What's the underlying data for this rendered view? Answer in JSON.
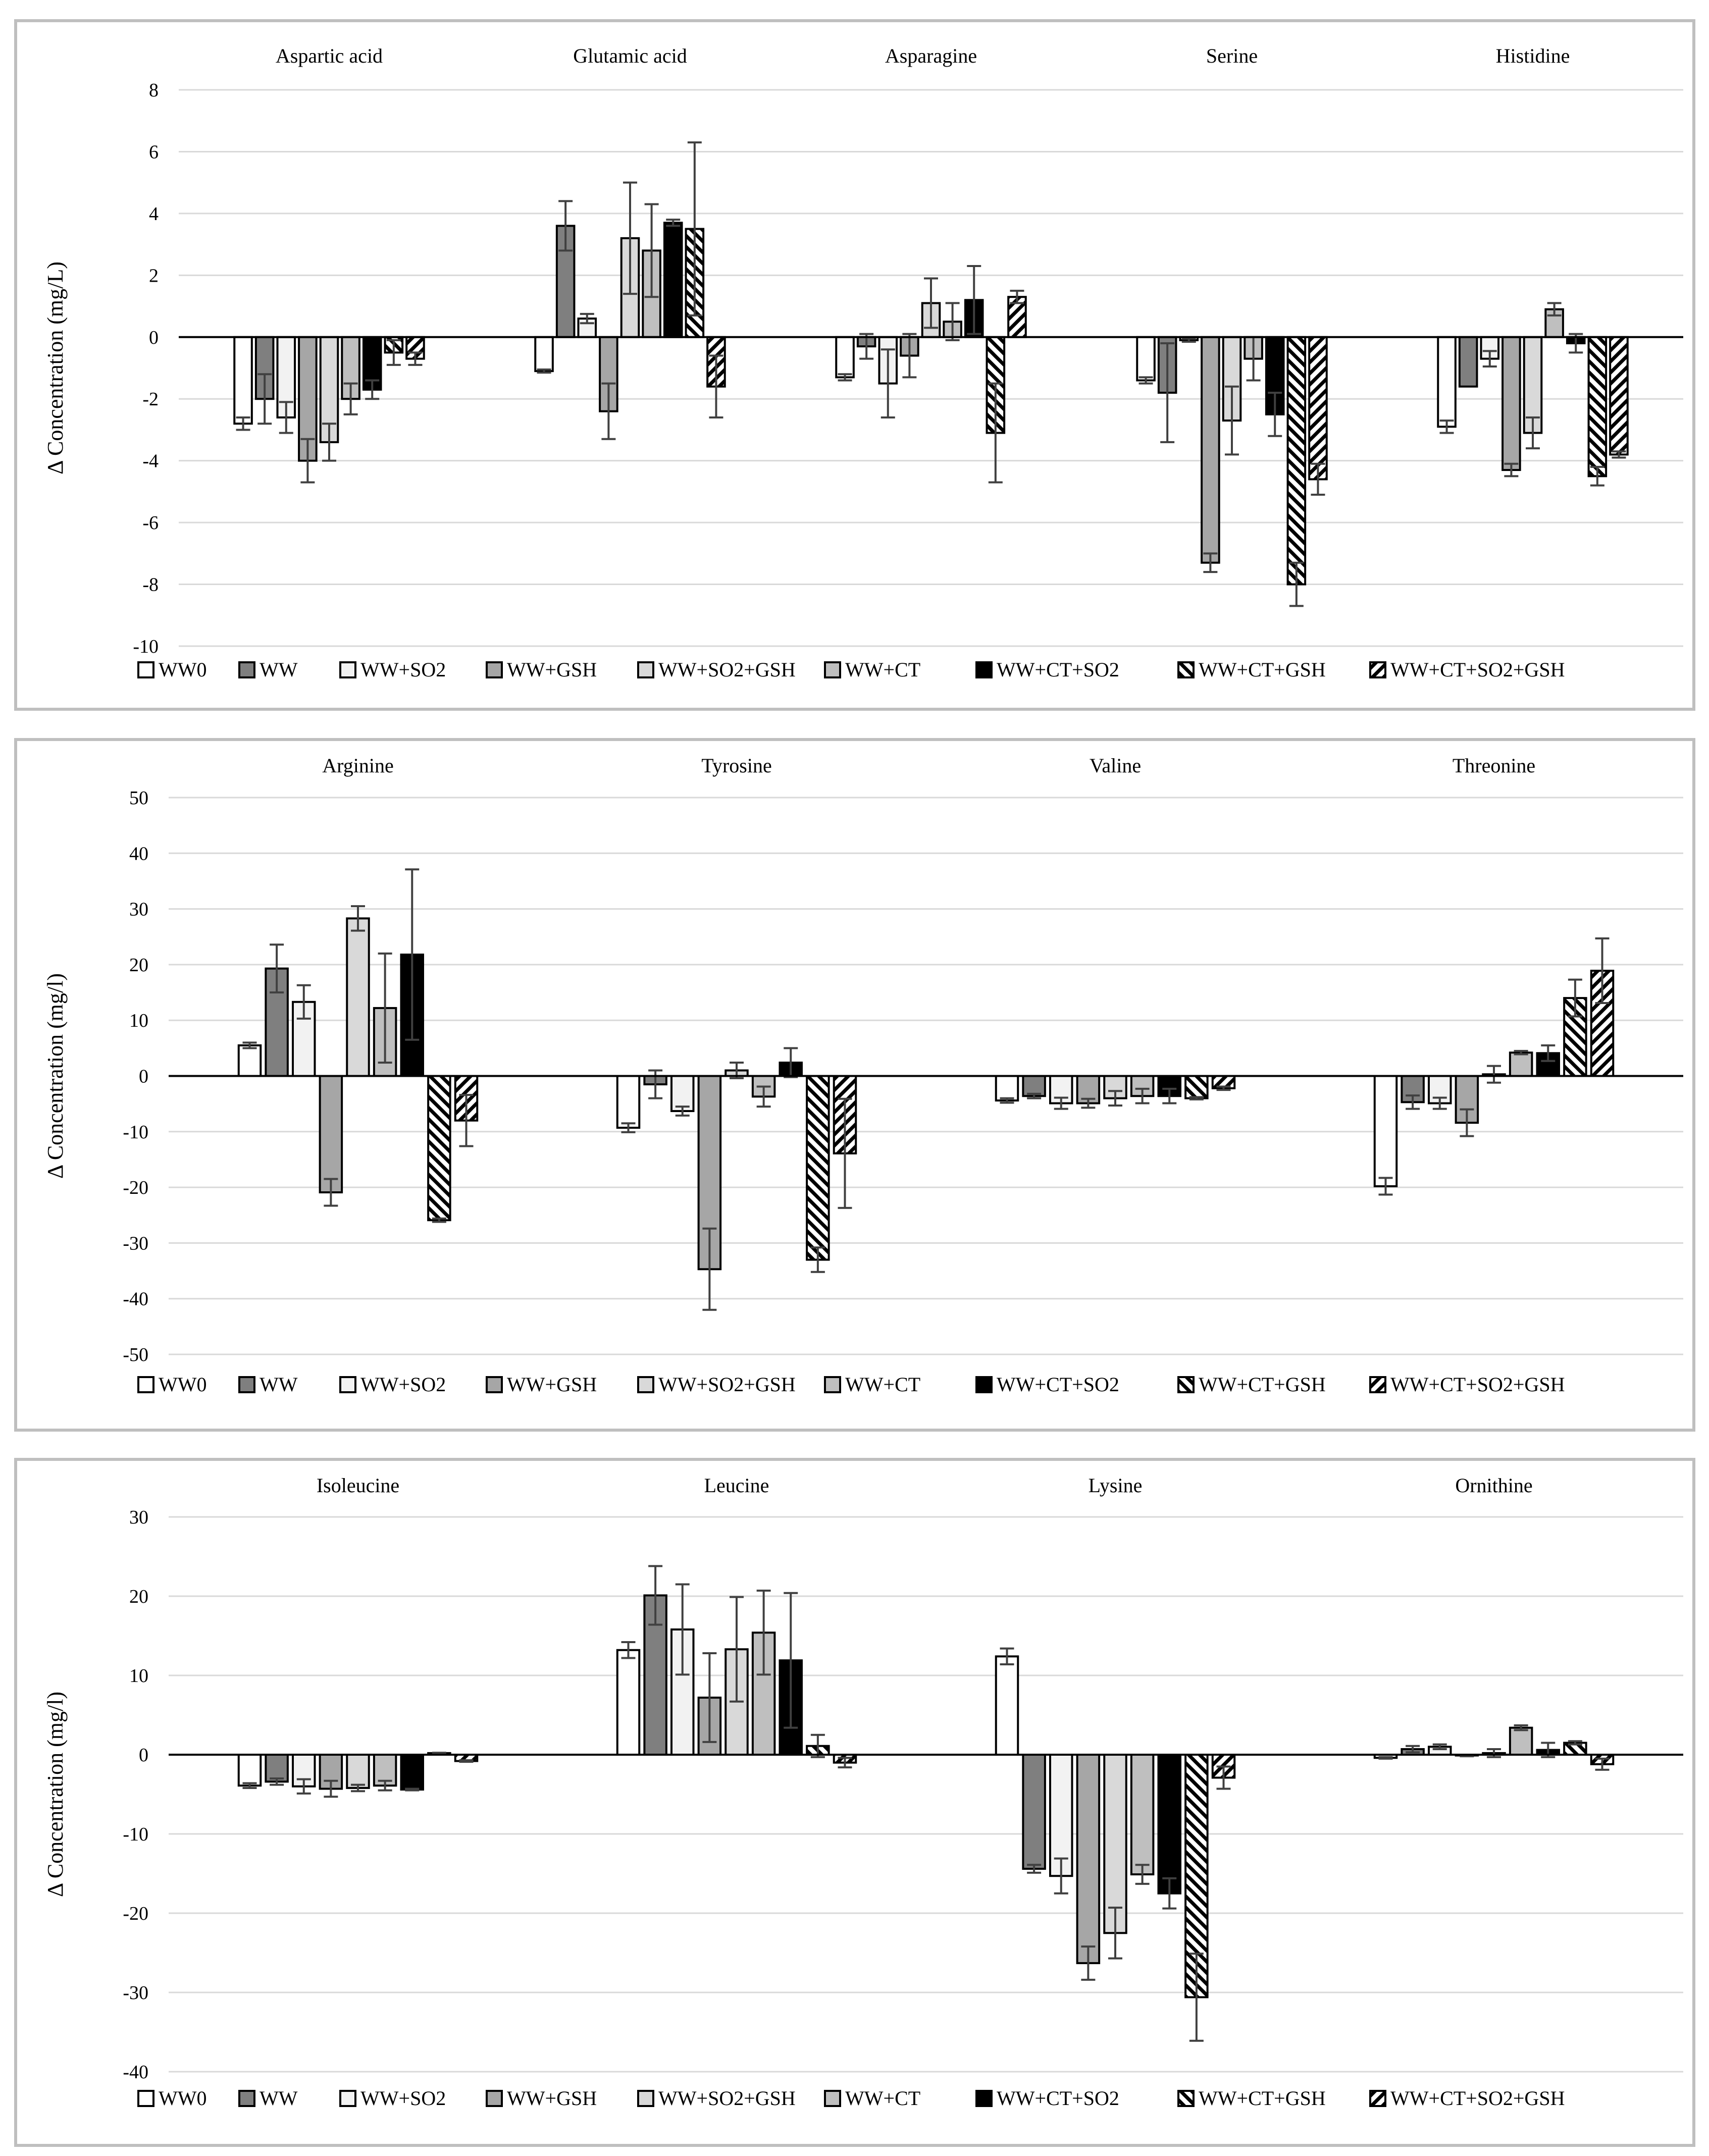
{
  "legend": [
    "WW0",
    "WW",
    "WW+SO2",
    "WW+GSH",
    "WW+SO2+GSH",
    "WW+CT",
    "WW+CT+SO2",
    "WW+CT+GSH",
    "WW+CT+SO2+GSH"
  ],
  "colors": {
    "grid": "#d9d9d9",
    "axis": "#000000",
    "text": "#000000",
    "border": "#bfbfbf",
    "WW0": "#ffffff",
    "WW": "#7f7f7f",
    "WW+SO2": "#f2f2f2",
    "WW+GSH": "#a6a6a6",
    "WW+SO2+GSH": "#d9d9d9",
    "WW+CT": "#bfbfbf",
    "WW+CT+SO2": "#000000",
    "WW+CT+GSH": "hatch-back",
    "WW+CT+SO2+GSH": "hatch-forward"
  },
  "chart_data": [
    {
      "type": "bar",
      "title": "",
      "ylabel": "Δ Concentration (mg/L)",
      "ylim": [
        -10,
        8
      ],
      "yticks": [
        8,
        6,
        4,
        2,
        0,
        -2,
        -4,
        -6,
        -8,
        -10
      ],
      "categories": [
        "Aspartic acid",
        "Glutamic acid",
        "Asparagine",
        "Serine",
        "Histidine"
      ],
      "series": [
        {
          "name": "WW0",
          "values": [
            -2.8,
            -1.1,
            -1.3,
            -1.4,
            -2.9
          ],
          "errors": [
            0.2,
            0.05,
            0.1,
            0.1,
            0.2
          ]
        },
        {
          "name": "WW",
          "values": [
            -2.0,
            3.6,
            -0.3,
            -1.8,
            -1.6
          ],
          "errors": [
            0.8,
            0.8,
            0.4,
            1.6,
            0.0
          ]
        },
        {
          "name": "WW+SO2",
          "values": [
            -2.6,
            0.6,
            -1.5,
            -0.1,
            -0.7
          ],
          "errors": [
            0.5,
            0.15,
            1.1,
            0.05,
            0.25
          ]
        },
        {
          "name": "WW+GSH",
          "values": [
            -4.0,
            -2.4,
            -0.6,
            -7.3,
            -4.3
          ],
          "errors": [
            0.7,
            0.9,
            0.7,
            0.3,
            0.2
          ]
        },
        {
          "name": "WW+SO2+GSH",
          "values": [
            -3.4,
            3.2,
            1.1,
            -2.7,
            -3.1
          ],
          "errors": [
            0.6,
            1.8,
            0.8,
            1.1,
            0.5
          ]
        },
        {
          "name": "WW+CT",
          "values": [
            -2.0,
            2.8,
            0.5,
            -0.7,
            0.9
          ],
          "errors": [
            0.5,
            1.5,
            0.6,
            0.7,
            0.2
          ]
        },
        {
          "name": "WW+CT+SO2",
          "values": [
            -1.7,
            3.7,
            1.2,
            -2.5,
            -0.2
          ],
          "errors": [
            0.3,
            0.1,
            1.1,
            0.7,
            0.3
          ]
        },
        {
          "name": "WW+CT+GSH",
          "values": [
            -0.5,
            3.5,
            -3.1,
            -8.0,
            -4.5
          ],
          "errors": [
            0.4,
            2.8,
            1.6,
            0.7,
            0.3
          ]
        },
        {
          "name": "WW+CT+SO2+GSH",
          "values": [
            -0.7,
            -1.6,
            1.3,
            -4.6,
            -3.8
          ],
          "errors": [
            0.2,
            1.0,
            0.2,
            0.5,
            0.1
          ]
        }
      ]
    },
    {
      "type": "bar",
      "title": "",
      "ylabel": "Δ Concentration (mg/l)",
      "ylim": [
        -50,
        50
      ],
      "yticks": [
        50,
        40,
        30,
        20,
        10,
        0,
        -10,
        -20,
        -30,
        -40,
        -50
      ],
      "categories": [
        "Arginine",
        "Tyrosine",
        "Valine",
        "Threonine"
      ],
      "series": [
        {
          "name": "WW0",
          "values": [
            5.5,
            -9.3,
            -4.4,
            -19.8
          ],
          "errors": [
            0.5,
            0.8,
            0.4,
            1.5
          ]
        },
        {
          "name": "WW",
          "values": [
            19.3,
            -1.5,
            -3.6,
            -4.7
          ],
          "errors": [
            4.3,
            2.5,
            0.4,
            1.2
          ]
        },
        {
          "name": "WW+SO2",
          "values": [
            13.3,
            -6.3,
            -4.9,
            -4.9
          ],
          "errors": [
            3.0,
            0.8,
            1.0,
            1.0
          ]
        },
        {
          "name": "WW+GSH",
          "values": [
            -20.9,
            -34.7,
            -4.9,
            -8.4
          ],
          "errors": [
            2.4,
            7.3,
            0.8,
            2.4
          ]
        },
        {
          "name": "WW+SO2+GSH",
          "values": [
            28.3,
            1.0,
            -4.0,
            0.3
          ],
          "errors": [
            2.2,
            1.4,
            1.3,
            1.5
          ]
        },
        {
          "name": "WW+CT",
          "values": [
            12.2,
            -3.7,
            -3.6,
            4.2
          ],
          "errors": [
            9.8,
            1.8,
            1.3,
            0.3
          ]
        },
        {
          "name": "WW+CT+SO2",
          "values": [
            21.8,
            2.4,
            -3.6,
            4.1
          ],
          "errors": [
            15.3,
            2.6,
            1.3,
            1.4
          ]
        },
        {
          "name": "WW+CT+GSH",
          "values": [
            -25.9,
            -33.0,
            -4.0,
            14.0
          ],
          "errors": [
            0.3,
            2.2,
            0.2,
            3.3
          ]
        },
        {
          "name": "WW+CT+SO2+GSH",
          "values": [
            -8.0,
            -13.9,
            -2.2,
            18.9
          ],
          "errors": [
            4.6,
            9.8,
            0.3,
            5.8
          ]
        }
      ]
    },
    {
      "type": "bar",
      "title": "",
      "ylabel": "Δ Concentration (mg/l)",
      "ylim": [
        -40,
        30
      ],
      "yticks": [
        30,
        20,
        10,
        0,
        -10,
        -20,
        -30,
        -40
      ],
      "categories": [
        "Isoleucine",
        "Leucine",
        "Lysine",
        "Ornithine"
      ],
      "series": [
        {
          "name": "WW0",
          "values": [
            -3.9,
            13.2,
            12.4,
            -0.4
          ],
          "errors": [
            0.3,
            1.0,
            1.0,
            0.1
          ]
        },
        {
          "name": "WW",
          "values": [
            -3.4,
            20.1,
            -14.4,
            0.7
          ],
          "errors": [
            0.4,
            3.7,
            0.5,
            0.4
          ]
        },
        {
          "name": "WW+SO2",
          "values": [
            -4.0,
            15.8,
            -15.3,
            1.0
          ],
          "errors": [
            0.9,
            5.7,
            2.2,
            0.3
          ]
        },
        {
          "name": "WW+GSH",
          "values": [
            -4.3,
            7.2,
            -26.3,
            -0.1
          ],
          "errors": [
            1.0,
            5.6,
            2.1,
            0.1
          ]
        },
        {
          "name": "WW+SO2+GSH",
          "values": [
            -4.2,
            13.3,
            -22.5,
            0.2
          ],
          "errors": [
            0.4,
            6.6,
            3.2,
            0.5
          ]
        },
        {
          "name": "WW+CT",
          "values": [
            -3.9,
            15.4,
            -15.1,
            3.4
          ],
          "errors": [
            0.6,
            5.3,
            1.2,
            0.3
          ]
        },
        {
          "name": "WW+CT+SO2",
          "values": [
            -4.4,
            11.9,
            -17.5,
            0.6
          ],
          "errors": [
            0.1,
            8.5,
            1.9,
            0.9
          ]
        },
        {
          "name": "WW+CT+GSH",
          "values": [
            0.2,
            1.1,
            -30.6,
            1.5
          ],
          "errors": [
            0.05,
            1.4,
            5.5,
            0.2
          ]
        },
        {
          "name": "WW+CT+SO2+GSH",
          "values": [
            -0.8,
            -1.0,
            -2.9,
            -1.2
          ],
          "errors": [
            0.1,
            0.6,
            1.4,
            0.7
          ]
        }
      ]
    }
  ]
}
